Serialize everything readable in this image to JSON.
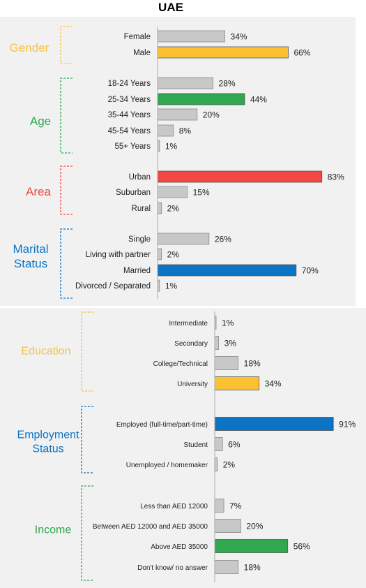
{
  "page": {
    "title": "UAE"
  },
  "colors": {
    "gray_bar": "#c8c8c8",
    "gray_edge": "#8a8a8a",
    "orange": "#fcc132",
    "green": "#2fa84f",
    "red": "#f44642",
    "blue": "#0b74c4"
  },
  "chart_data": [
    {
      "type": "bar",
      "orientation": "horizontal",
      "xlim": [
        0,
        100
      ],
      "groups": [
        {
          "name": "Gender",
          "label_lines": [
            "Gender"
          ],
          "color": "#fcc132",
          "categories": [
            "Female",
            "Male"
          ],
          "values": [
            34,
            66
          ],
          "labels": [
            "34%",
            "66%"
          ],
          "highlight": 1
        },
        {
          "name": "Age",
          "label_lines": [
            "Age"
          ],
          "color": "#2fa84f",
          "categories": [
            "18-24 Years",
            "25-34 Years",
            "35-44 Years",
            "45-54 Years",
            "55+ Years"
          ],
          "values": [
            28,
            44,
            20,
            8,
            1
          ],
          "labels": [
            "28%",
            "44%",
            "20%",
            "8%",
            "1%"
          ],
          "highlight": 1
        },
        {
          "name": "Area",
          "label_lines": [
            "Area"
          ],
          "color": "#f44642",
          "categories": [
            "Urban",
            "Suburban",
            "Rural"
          ],
          "values": [
            83,
            15,
            2
          ],
          "labels": [
            "83%",
            "15%",
            "2%"
          ],
          "highlight": 0
        },
        {
          "name": "Marital Status",
          "label_lines": [
            "Marital",
            "Status"
          ],
          "color": "#0b74c4",
          "categories": [
            "Single",
            "Living with partner",
            "Married",
            "Divorced / Separated"
          ],
          "values": [
            26,
            2,
            70,
            1
          ],
          "labels": [
            "26%",
            "2%",
            "70%",
            "1%"
          ],
          "highlight": 2
        }
      ]
    },
    {
      "type": "bar",
      "orientation": "horizontal",
      "xlim": [
        0,
        100
      ],
      "groups": [
        {
          "name": "Education",
          "label_lines": [
            "Education"
          ],
          "color": "#fcc132",
          "categories": [
            "Intermediate",
            "Secondary",
            "College/Technical",
            "University"
          ],
          "values": [
            1,
            3,
            18,
            34
          ],
          "labels": [
            "1%",
            "3%",
            "18%",
            "34%"
          ],
          "highlight": 3
        },
        {
          "name": "Employment Status",
          "label_lines": [
            "Employment",
            "Status"
          ],
          "color": "#0b74c4",
          "categories": [
            "Employed (full-time/part-time)",
            "Student",
            "Unemployed / homemaker"
          ],
          "values": [
            91,
            6,
            2
          ],
          "labels": [
            "91%",
            "6%",
            "2%"
          ],
          "highlight": 0
        },
        {
          "name": "Income",
          "label_lines": [
            "Income"
          ],
          "color": "#2fa84f",
          "categories": [
            "Less than AED 12000",
            "Between AED 12000 and AED 35000",
            "Above AED 35000",
            "Don't know/ no answer"
          ],
          "values": [
            7,
            20,
            56,
            18
          ],
          "labels": [
            "7%",
            "20%",
            "56%",
            "18%"
          ],
          "highlight": 2
        }
      ]
    }
  ]
}
